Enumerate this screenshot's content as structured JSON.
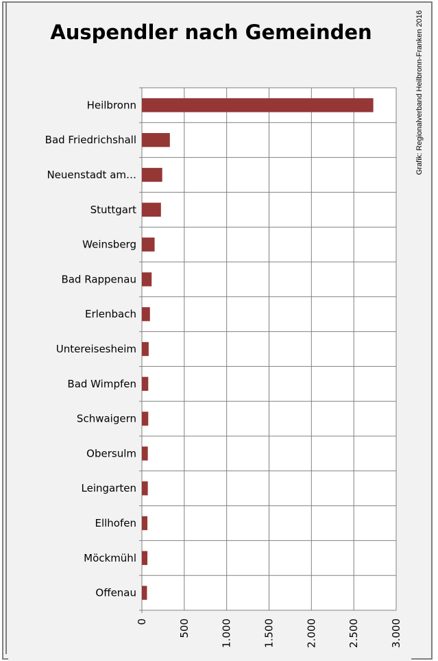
{
  "title": "Auspendler nach Gemeinden",
  "credit": "Grafik: Regionalverband Heilbronn-Franken 2016",
  "chart_data": {
    "type": "bar",
    "orientation": "horizontal",
    "title": "Auspendler nach Gemeinden",
    "categories": [
      "Heilbronn",
      "Bad Friedrichshall",
      "Neuenstadt am…",
      "Stuttgart",
      "Weinsberg",
      "Bad Rappenau",
      "Erlenbach",
      "Untereisesheim",
      "Bad Wimpfen",
      "Schwaigern",
      "Obersulm",
      "Leingarten",
      "Ellhofen",
      "Möckmühl",
      "Offenau"
    ],
    "values": [
      2730,
      330,
      240,
      225,
      150,
      115,
      95,
      80,
      75,
      75,
      70,
      70,
      65,
      65,
      60
    ],
    "xlim": [
      0,
      3000
    ],
    "x_ticks": [
      "0",
      "500",
      "1.000",
      "1.500",
      "2.000",
      "2.500",
      "3.000"
    ],
    "grid": true,
    "legend": "none",
    "bar_color": "#953735"
  }
}
